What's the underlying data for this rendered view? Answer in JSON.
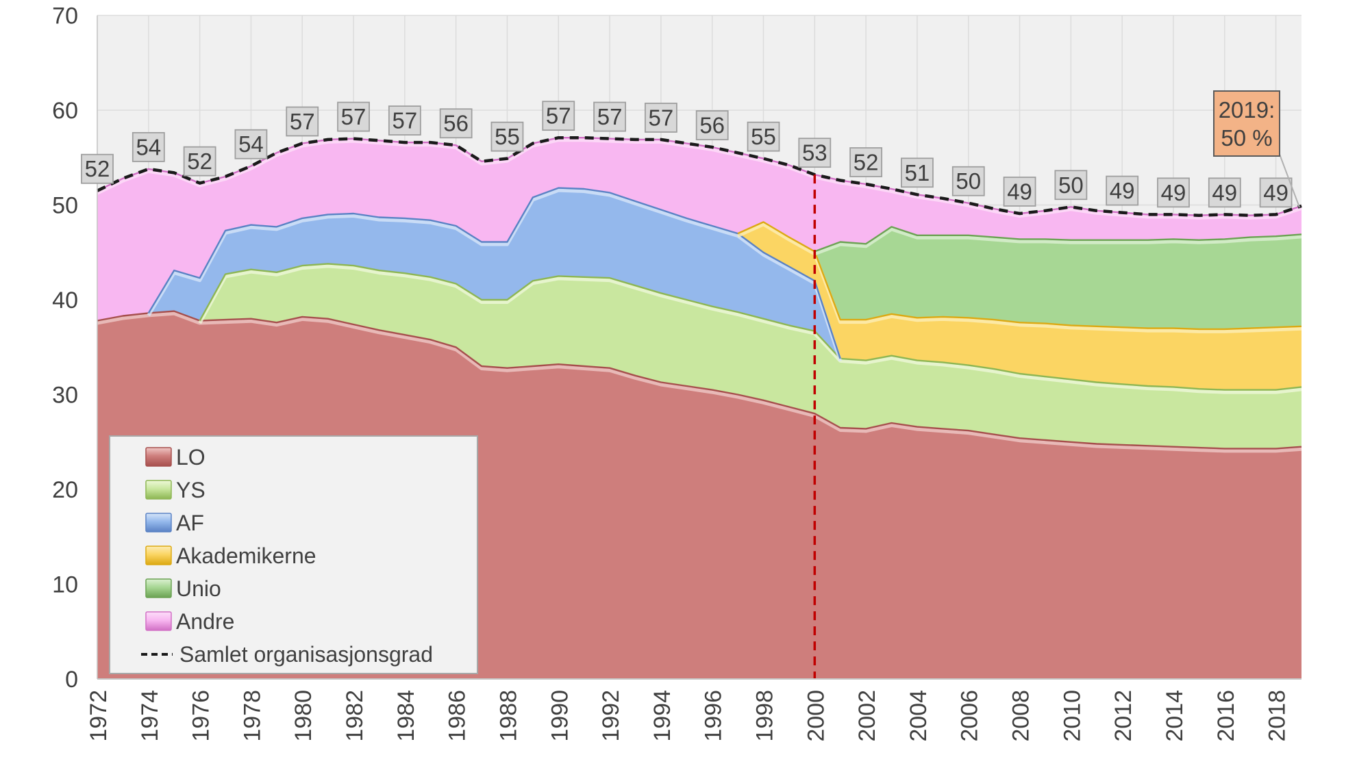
{
  "chart_data": {
    "type": "area",
    "stacked": true,
    "title": "",
    "x_years": [
      1972,
      1973,
      1974,
      1975,
      1976,
      1977,
      1978,
      1979,
      1980,
      1981,
      1982,
      1983,
      1984,
      1985,
      1986,
      1987,
      1988,
      1989,
      1990,
      1991,
      1992,
      1993,
      1994,
      1995,
      1996,
      1997,
      1998,
      1999,
      2000,
      2001,
      2002,
      2003,
      2004,
      2005,
      2006,
      2007,
      2008,
      2009,
      2010,
      2011,
      2012,
      2013,
      2014,
      2015,
      2016,
      2017,
      2018,
      2019
    ],
    "series": [
      {
        "name": "LO",
        "fill": "#ce7e7c",
        "edge": "#a64f4d",
        "highlight": "#efc8c6",
        "values": [
          37.8,
          38.3,
          38.6,
          38.8,
          37.8,
          37.9,
          38.0,
          37.6,
          38.2,
          38.0,
          37.4,
          36.8,
          36.3,
          35.8,
          35.0,
          33.0,
          32.8,
          33.0,
          33.2,
          33.0,
          32.8,
          32.0,
          31.3,
          30.9,
          30.5,
          30.0,
          29.4,
          28.7,
          28.0,
          26.5,
          26.4,
          27.0,
          26.6,
          26.4,
          26.2,
          25.8,
          25.4,
          25.2,
          25.0,
          24.8,
          24.7,
          24.6,
          24.5,
          24.4,
          24.3,
          24.3,
          24.3,
          24.5
        ]
      },
      {
        "name": "YS",
        "fill": "#c9e79f",
        "edge": "#8db653",
        "highlight": "#eef8d8",
        "values": [
          0,
          0,
          0,
          0,
          0,
          4.8,
          5.2,
          5.3,
          5.4,
          5.8,
          6.2,
          6.3,
          6.5,
          6.6,
          6.7,
          7.0,
          7.2,
          9.0,
          9.3,
          9.4,
          9.5,
          9.5,
          9.4,
          9.1,
          8.8,
          8.7,
          8.6,
          8.6,
          8.7,
          7.3,
          7.2,
          7.1,
          7.0,
          7.0,
          6.9,
          6.9,
          6.8,
          6.7,
          6.6,
          6.5,
          6.4,
          6.3,
          6.3,
          6.2,
          6.2,
          6.2,
          6.2,
          6.3
        ]
      },
      {
        "name": "AF",
        "fill": "#94b8ec",
        "edge": "#5a82c4",
        "highlight": "#d6e5f9",
        "values": [
          0,
          0,
          0,
          4.3,
          4.5,
          4.6,
          4.7,
          4.8,
          5.0,
          5.2,
          5.5,
          5.6,
          5.8,
          6.0,
          6.1,
          6.1,
          6.1,
          8.8,
          9.3,
          9.3,
          9.0,
          8.9,
          8.8,
          8.6,
          8.5,
          8.3,
          7.0,
          6.2,
          5.3,
          0,
          0,
          0,
          0,
          0,
          0,
          0,
          0,
          0,
          0,
          0,
          0,
          0,
          0,
          0,
          0,
          0,
          0,
          0
        ]
      },
      {
        "name": "Akademikerne",
        "fill": "#fbd563",
        "edge": "#dca913",
        "highlight": "#fdedb5",
        "values": [
          0,
          0,
          0,
          0,
          0,
          0,
          0,
          0,
          0,
          0,
          0,
          0,
          0,
          0,
          0,
          0,
          0,
          0,
          0,
          0,
          0,
          0,
          0,
          0,
          0,
          0,
          3.2,
          3.1,
          3.1,
          4.1,
          4.3,
          4.4,
          4.5,
          4.8,
          5.0,
          5.2,
          5.4,
          5.6,
          5.7,
          5.9,
          6.0,
          6.1,
          6.2,
          6.3,
          6.4,
          6.5,
          6.6,
          6.4
        ]
      },
      {
        "name": "Unio",
        "fill": "#a7d794",
        "edge": "#6ba253",
        "highlight": "#dcf0d2",
        "values": [
          0,
          0,
          0,
          0,
          0,
          0,
          0,
          0,
          0,
          0,
          0,
          0,
          0,
          0,
          0,
          0,
          0,
          0,
          0,
          0,
          0,
          0,
          0,
          0,
          0,
          0,
          0,
          0,
          0,
          8.2,
          8.0,
          9.2,
          8.7,
          8.6,
          8.7,
          8.7,
          8.8,
          8.9,
          9.0,
          9.1,
          9.2,
          9.3,
          9.4,
          9.4,
          9.5,
          9.6,
          9.6,
          9.7
        ]
      },
      {
        "name": "Andre",
        "fill": "#f8b7f1",
        "edge": "#d170c5",
        "highlight": "#fcdef9",
        "values": [
          13.7,
          14.5,
          15.2,
          10.3,
          10.0,
          5.7,
          6.2,
          7.8,
          7.9,
          7.9,
          7.9,
          8.1,
          8.0,
          8.2,
          8.5,
          8.5,
          8.8,
          5.7,
          5.3,
          5.4,
          5.7,
          6.5,
          7.4,
          7.9,
          8.3,
          8.5,
          6.7,
          7.6,
          8.1,
          6.5,
          6.3,
          4.0,
          4.3,
          3.9,
          3.4,
          3.0,
          2.7,
          3.0,
          3.5,
          3.1,
          2.9,
          2.7,
          2.6,
          2.6,
          2.6,
          2.3,
          2.3,
          3.0
        ]
      }
    ],
    "total_line": {
      "label": "Samlet organisasjonsgrad",
      "values": [
        51.5,
        52.8,
        53.8,
        53.4,
        52.3,
        53.0,
        54.1,
        55.5,
        56.5,
        56.9,
        57.0,
        56.8,
        56.6,
        56.6,
        56.3,
        54.6,
        54.9,
        56.5,
        57.1,
        57.1,
        57.0,
        56.9,
        56.9,
        56.5,
        56.1,
        55.5,
        54.9,
        54.2,
        53.2,
        52.6,
        52.2,
        51.7,
        51.1,
        50.7,
        50.2,
        49.6,
        49.1,
        49.4,
        49.8,
        49.4,
        49.2,
        49.0,
        49.0,
        48.9,
        49.0,
        48.9,
        49.0,
        49.9
      ]
    },
    "data_labels": {
      "years": [
        1972,
        1974,
        1976,
        1978,
        1980,
        1982,
        1984,
        1986,
        1988,
        1990,
        1992,
        1994,
        1996,
        1998,
        2000,
        2002,
        2004,
        2006,
        2008,
        2010,
        2012,
        2014,
        2016,
        2018
      ],
      "values": [
        "52",
        "54",
        "52",
        "54",
        "57",
        "57",
        "57",
        "56",
        "55",
        "57",
        "57",
        "57",
        "56",
        "55",
        "53",
        "52",
        "51",
        "50",
        "49",
        "50",
        "49",
        "49",
        "49",
        "49"
      ]
    },
    "callout": {
      "year": 2019,
      "line1": "2019:",
      "line2": "50 %"
    },
    "reference_line": {
      "year": 2000
    },
    "y_axis": {
      "min": 0,
      "max": 70,
      "tick_step": 10,
      "tick_labels": [
        "0",
        "10",
        "20",
        "30",
        "40",
        "50",
        "60",
        "70"
      ]
    },
    "x_axis": {
      "tick_labels": [
        "1972",
        "1974",
        "1976",
        "1978",
        "1980",
        "1982",
        "1984",
        "1986",
        "1988",
        "1990",
        "1992",
        "1994",
        "1996",
        "1998",
        "2000",
        "2002",
        "2004",
        "2006",
        "2008",
        "2010",
        "2012",
        "2014",
        "2016",
        "2018"
      ]
    },
    "legend": {
      "line_entry": "Samlet organisasjonsgrad"
    }
  },
  "style": {
    "page_bg": "#ffffff",
    "plot_bg": "#f0f0f0",
    "grid": "#dcdcdc",
    "axis_line": "#c6c6c6",
    "axis_text": "#3f3f3f",
    "label_box_fill": "#d8d8d8",
    "label_box_border": "#9e9e9e",
    "label_text": "#3f3f3f",
    "total_line_color": "#1a1a1a",
    "reference_line_color": "#c00000",
    "callout_fill": "#f3b387",
    "callout_border": "#5a5a5a",
    "callout_text": "#3f3f3f",
    "leader_line": "#b0b0b0",
    "legend_bg": "#f2f2f2",
    "legend_border": "#a8a8a8",
    "legend_text": "#404040"
  }
}
